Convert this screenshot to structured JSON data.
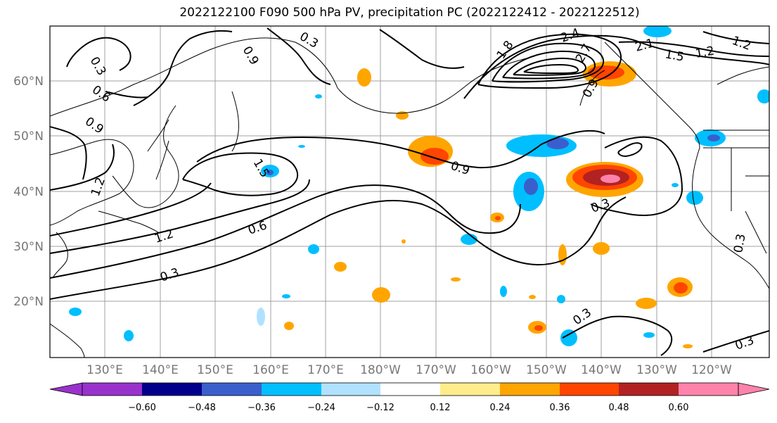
{
  "title": "2022122100 F090 500 hPa PV, precipitation PC (2022122412 - 2022122512)",
  "lat_labels": [
    "60°N",
    "50°N",
    "40°N",
    "30°N",
    "20°N"
  ],
  "lon_labels": [
    "130°E",
    "140°E",
    "150°E",
    "160°E",
    "170°E",
    "180°W",
    "170°W",
    "160°W",
    "150°W",
    "140°W",
    "130°W",
    "120°W"
  ],
  "contour_labels": [
    "0.3",
    "0.6",
    "0.9",
    "1.2",
    "1.5",
    "1.8",
    "2.1",
    "2.4",
    "2.7"
  ],
  "colorbar": {
    "ticks": [
      "−0.60",
      "−0.48",
      "−0.36",
      "−0.24",
      "−0.12",
      "0.12",
      "0.24",
      "0.36",
      "0.48",
      "0.60"
    ],
    "colors": [
      "#9932cc",
      "#00008b",
      "#3a5fcd",
      "#00bfff",
      "#b0e2ff",
      "#ffffff",
      "#ffec8b",
      "#ffa500",
      "#ff4500",
      "#b22222",
      "#ff82ab"
    ]
  }
}
